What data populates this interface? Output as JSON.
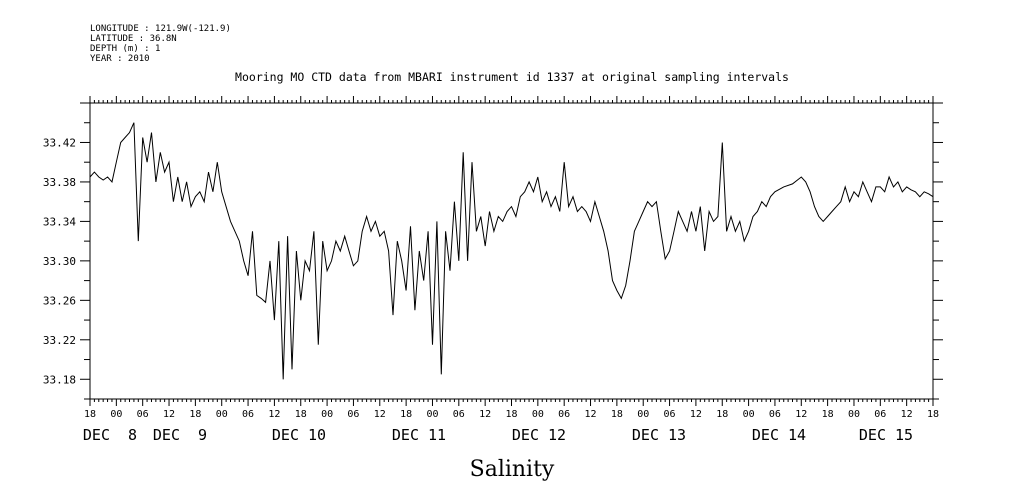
{
  "meta": {
    "longitude": "LONGITUDE : 121.9W(-121.9)",
    "latitude": "LATITUDE : 36.8N",
    "depth": "DEPTH (m) : 1",
    "year": "YEAR : 2010"
  },
  "chart_data": {
    "type": "line",
    "title": "Mooring MO CTD data from MBARI instrument id 1337 at original sampling intervals",
    "xlabel": "Salinity",
    "ylabel": "",
    "xlim": [
      "2010-12-07T18:00",
      "2010-12-15T18:00"
    ],
    "ylim": [
      33.16,
      33.46
    ],
    "yticks": [
      "33.18",
      "33.22",
      "33.26",
      "33.30",
      "33.34",
      "33.38",
      "33.42"
    ],
    "hour_labels": [
      "18",
      "00",
      "06",
      "12",
      "18",
      "00",
      "06",
      "12",
      "18",
      "00",
      "06",
      "12",
      "18",
      "00",
      "06",
      "12",
      "18",
      "00",
      "06",
      "12",
      "18",
      "00",
      "06",
      "12",
      "18",
      "00",
      "06",
      "12",
      "18",
      "00",
      "06",
      "12",
      "18"
    ],
    "day_labels": [
      "DEC  8",
      "DEC  9",
      "DEC 10",
      "DEC 11",
      "DEC 12",
      "DEC 13",
      "DEC 14",
      "DEC 15"
    ],
    "grid": false,
    "series": [
      {
        "values": [
          [
            "2010-12-07T18:00",
            33.385
          ],
          [
            "2010-12-07T19:00",
            33.39
          ],
          [
            "2010-12-07T20:00",
            33.385
          ],
          [
            "2010-12-07T21:00",
            33.382
          ],
          [
            "2010-12-07T22:00",
            33.385
          ],
          [
            "2010-12-07T23:00",
            33.38
          ],
          [
            "2010-12-08T00:00",
            33.4
          ],
          [
            "2010-12-08T01:00",
            33.42
          ],
          [
            "2010-12-08T02:00",
            33.425
          ],
          [
            "2010-12-08T03:00",
            33.43
          ],
          [
            "2010-12-08T04:00",
            33.44
          ],
          [
            "2010-12-08T05:00",
            33.32
          ],
          [
            "2010-12-08T06:00",
            33.425
          ],
          [
            "2010-12-08T07:00",
            33.4
          ],
          [
            "2010-12-08T08:00",
            33.43
          ],
          [
            "2010-12-08T09:00",
            33.38
          ],
          [
            "2010-12-08T10:00",
            33.41
          ],
          [
            "2010-12-08T11:00",
            33.39
          ],
          [
            "2010-12-08T12:00",
            33.4
          ],
          [
            "2010-12-08T13:00",
            33.36
          ],
          [
            "2010-12-08T14:00",
            33.385
          ],
          [
            "2010-12-08T15:00",
            33.36
          ],
          [
            "2010-12-08T16:00",
            33.38
          ],
          [
            "2010-12-08T17:00",
            33.355
          ],
          [
            "2010-12-08T18:00",
            33.365
          ],
          [
            "2010-12-08T19:00",
            33.37
          ],
          [
            "2010-12-08T20:00",
            33.36
          ],
          [
            "2010-12-08T21:00",
            33.39
          ],
          [
            "2010-12-08T22:00",
            33.37
          ],
          [
            "2010-12-08T23:00",
            33.4
          ],
          [
            "2010-12-09T00:00",
            33.37
          ],
          [
            "2010-12-09T02:00",
            33.34
          ],
          [
            "2010-12-09T04:00",
            33.32
          ],
          [
            "2010-12-09T05:00",
            33.3
          ],
          [
            "2010-12-09T06:00",
            33.285
          ],
          [
            "2010-12-09T07:00",
            33.33
          ],
          [
            "2010-12-09T08:00",
            33.265
          ],
          [
            "2010-12-09T09:00",
            33.262
          ],
          [
            "2010-12-09T10:00",
            33.258
          ],
          [
            "2010-12-09T11:00",
            33.3
          ],
          [
            "2010-12-09T12:00",
            33.24
          ],
          [
            "2010-12-09T13:00",
            33.32
          ],
          [
            "2010-12-09T14:00",
            33.18
          ],
          [
            "2010-12-09T15:00",
            33.325
          ],
          [
            "2010-12-09T16:00",
            33.19
          ],
          [
            "2010-12-09T17:00",
            33.31
          ],
          [
            "2010-12-09T18:00",
            33.26
          ],
          [
            "2010-12-09T19:00",
            33.3
          ],
          [
            "2010-12-09T20:00",
            33.29
          ],
          [
            "2010-12-09T21:00",
            33.33
          ],
          [
            "2010-12-09T22:00",
            33.215
          ],
          [
            "2010-12-09T23:00",
            33.32
          ],
          [
            "2010-12-10T00:00",
            33.29
          ],
          [
            "2010-12-10T01:00",
            33.3
          ],
          [
            "2010-12-10T02:00",
            33.32
          ],
          [
            "2010-12-10T03:00",
            33.31
          ],
          [
            "2010-12-10T04:00",
            33.325
          ],
          [
            "2010-12-10T05:00",
            33.31
          ],
          [
            "2010-12-10T06:00",
            33.295
          ],
          [
            "2010-12-10T07:00",
            33.3
          ],
          [
            "2010-12-10T08:00",
            33.33
          ],
          [
            "2010-12-10T09:00",
            33.345
          ],
          [
            "2010-12-10T10:00",
            33.33
          ],
          [
            "2010-12-10T11:00",
            33.34
          ],
          [
            "2010-12-10T12:00",
            33.325
          ],
          [
            "2010-12-10T13:00",
            33.33
          ],
          [
            "2010-12-10T14:00",
            33.31
          ],
          [
            "2010-12-10T15:00",
            33.245
          ],
          [
            "2010-12-10T16:00",
            33.32
          ],
          [
            "2010-12-10T17:00",
            33.3
          ],
          [
            "2010-12-10T18:00",
            33.27
          ],
          [
            "2010-12-10T19:00",
            33.335
          ],
          [
            "2010-12-10T20:00",
            33.25
          ],
          [
            "2010-12-10T21:00",
            33.31
          ],
          [
            "2010-12-10T22:00",
            33.28
          ],
          [
            "2010-12-10T23:00",
            33.33
          ],
          [
            "2010-12-11T00:00",
            33.215
          ],
          [
            "2010-12-11T01:00",
            33.34
          ],
          [
            "2010-12-11T02:00",
            33.185
          ],
          [
            "2010-12-11T03:00",
            33.33
          ],
          [
            "2010-12-11T04:00",
            33.29
          ],
          [
            "2010-12-11T05:00",
            33.36
          ],
          [
            "2010-12-11T06:00",
            33.3
          ],
          [
            "2010-12-11T07:00",
            33.41
          ],
          [
            "2010-12-11T08:00",
            33.3
          ],
          [
            "2010-12-11T09:00",
            33.4
          ],
          [
            "2010-12-11T10:00",
            33.33
          ],
          [
            "2010-12-11T11:00",
            33.345
          ],
          [
            "2010-12-11T12:00",
            33.315
          ],
          [
            "2010-12-11T13:00",
            33.35
          ],
          [
            "2010-12-11T14:00",
            33.33
          ],
          [
            "2010-12-11T15:00",
            33.345
          ],
          [
            "2010-12-11T16:00",
            33.34
          ],
          [
            "2010-12-11T17:00",
            33.35
          ],
          [
            "2010-12-11T18:00",
            33.355
          ],
          [
            "2010-12-11T19:00",
            33.345
          ],
          [
            "2010-12-11T20:00",
            33.365
          ],
          [
            "2010-12-11T21:00",
            33.37
          ],
          [
            "2010-12-11T22:00",
            33.38
          ],
          [
            "2010-12-11T23:00",
            33.37
          ],
          [
            "2010-12-12T00:00",
            33.385
          ],
          [
            "2010-12-12T01:00",
            33.36
          ],
          [
            "2010-12-12T02:00",
            33.37
          ],
          [
            "2010-12-12T03:00",
            33.355
          ],
          [
            "2010-12-12T04:00",
            33.365
          ],
          [
            "2010-12-12T05:00",
            33.35
          ],
          [
            "2010-12-12T06:00",
            33.4
          ],
          [
            "2010-12-12T07:00",
            33.355
          ],
          [
            "2010-12-12T08:00",
            33.365
          ],
          [
            "2010-12-12T09:00",
            33.35
          ],
          [
            "2010-12-12T10:00",
            33.355
          ],
          [
            "2010-12-12T11:00",
            33.35
          ],
          [
            "2010-12-12T12:00",
            33.34
          ],
          [
            "2010-12-12T13:00",
            33.36
          ],
          [
            "2010-12-12T14:00",
            33.345
          ],
          [
            "2010-12-12T15:00",
            33.33
          ],
          [
            "2010-12-12T16:00",
            33.31
          ],
          [
            "2010-12-12T17:00",
            33.28
          ],
          [
            "2010-12-12T18:00",
            33.27
          ],
          [
            "2010-12-12T19:00",
            33.262
          ],
          [
            "2010-12-12T20:00",
            33.275
          ],
          [
            "2010-12-12T21:00",
            33.3
          ],
          [
            "2010-12-12T22:00",
            33.33
          ],
          [
            "2010-12-12T23:00",
            33.34
          ],
          [
            "2010-12-13T00:00",
            33.35
          ],
          [
            "2010-12-13T01:00",
            33.36
          ],
          [
            "2010-12-13T02:00",
            33.355
          ],
          [
            "2010-12-13T03:00",
            33.36
          ],
          [
            "2010-12-13T04:00",
            33.33
          ],
          [
            "2010-12-13T05:00",
            33.302
          ],
          [
            "2010-12-13T06:00",
            33.31
          ],
          [
            "2010-12-13T07:00",
            33.33
          ],
          [
            "2010-12-13T08:00",
            33.35
          ],
          [
            "2010-12-13T09:00",
            33.34
          ],
          [
            "2010-12-13T10:00",
            33.33
          ],
          [
            "2010-12-13T11:00",
            33.35
          ],
          [
            "2010-12-13T12:00",
            33.33
          ],
          [
            "2010-12-13T13:00",
            33.355
          ],
          [
            "2010-12-13T14:00",
            33.31
          ],
          [
            "2010-12-13T15:00",
            33.35
          ],
          [
            "2010-12-13T16:00",
            33.34
          ],
          [
            "2010-12-13T17:00",
            33.345
          ],
          [
            "2010-12-13T18:00",
            33.42
          ],
          [
            "2010-12-13T19:00",
            33.33
          ],
          [
            "2010-12-13T20:00",
            33.345
          ],
          [
            "2010-12-13T21:00",
            33.33
          ],
          [
            "2010-12-13T22:00",
            33.34
          ],
          [
            "2010-12-13T23:00",
            33.32
          ],
          [
            "2010-12-14T00:00",
            33.33
          ],
          [
            "2010-12-14T01:00",
            33.345
          ],
          [
            "2010-12-14T02:00",
            33.35
          ],
          [
            "2010-12-14T03:00",
            33.36
          ],
          [
            "2010-12-14T04:00",
            33.355
          ],
          [
            "2010-12-14T05:00",
            33.365
          ],
          [
            "2010-12-14T06:00",
            33.37
          ],
          [
            "2010-12-14T08:00",
            33.375
          ],
          [
            "2010-12-14T10:00",
            33.378
          ],
          [
            "2010-12-14T12:00",
            33.385
          ],
          [
            "2010-12-14T13:00",
            33.38
          ],
          [
            "2010-12-14T14:00",
            33.37
          ],
          [
            "2010-12-14T15:00",
            33.355
          ],
          [
            "2010-12-14T16:00",
            33.345
          ],
          [
            "2010-12-14T17:00",
            33.34
          ],
          [
            "2010-12-14T18:00",
            33.345
          ],
          [
            "2010-12-14T19:00",
            33.35
          ],
          [
            "2010-12-14T20:00",
            33.355
          ],
          [
            "2010-12-14T21:00",
            33.36
          ],
          [
            "2010-12-14T22:00",
            33.375
          ],
          [
            "2010-12-14T23:00",
            33.36
          ],
          [
            "2010-12-15T00:00",
            33.37
          ],
          [
            "2010-12-15T01:00",
            33.365
          ],
          [
            "2010-12-15T02:00",
            33.38
          ],
          [
            "2010-12-15T03:00",
            33.37
          ],
          [
            "2010-12-15T04:00",
            33.36
          ],
          [
            "2010-12-15T05:00",
            33.375
          ],
          [
            "2010-12-15T06:00",
            33.375
          ],
          [
            "2010-12-15T07:00",
            33.37
          ],
          [
            "2010-12-15T08:00",
            33.385
          ],
          [
            "2010-12-15T09:00",
            33.375
          ],
          [
            "2010-12-15T10:00",
            33.38
          ],
          [
            "2010-12-15T11:00",
            33.37
          ],
          [
            "2010-12-15T12:00",
            33.375
          ],
          [
            "2010-12-15T13:00",
            33.372
          ],
          [
            "2010-12-15T14:00",
            33.37
          ],
          [
            "2010-12-15T15:00",
            33.365
          ],
          [
            "2010-12-15T16:00",
            33.37
          ],
          [
            "2010-12-15T17:00",
            33.368
          ],
          [
            "2010-12-15T18:00",
            33.365
          ]
        ]
      }
    ]
  }
}
